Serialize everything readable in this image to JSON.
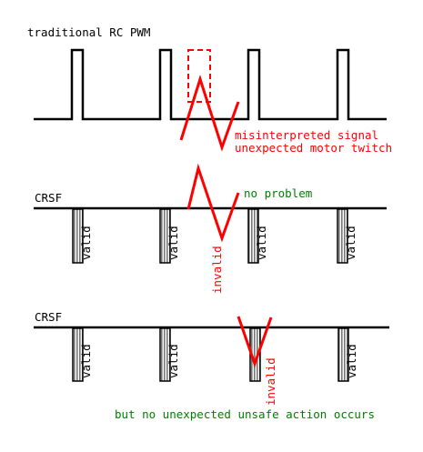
{
  "pwm_section": {
    "title": "traditional RC PWM",
    "note_line1": "misinterpreted signal",
    "note_line2": "unexpected motor twitch"
  },
  "crsf_section_1": {
    "title": "CRSF",
    "packet_labels": [
      "valid",
      "valid",
      "invalid",
      "valid",
      "valid"
    ],
    "note": "no problem"
  },
  "crsf_section_2": {
    "title": "CRSF",
    "packet_labels": [
      "valid",
      "valid",
      "invalid",
      "valid"
    ],
    "note": "but no unexpected unsafe action occurs"
  },
  "colors": {
    "signal": "#000000",
    "interference": "#ff0000",
    "ok": "#008000",
    "packet_fill": "#aaaaaa"
  }
}
